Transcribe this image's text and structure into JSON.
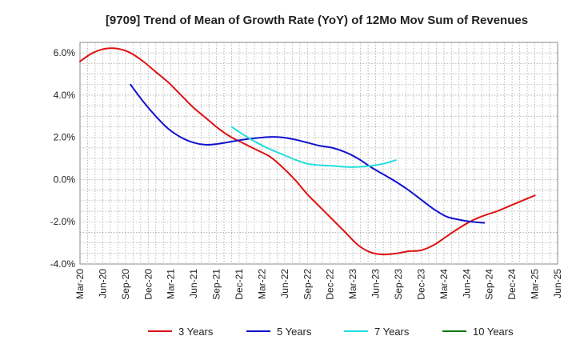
{
  "chart_data": {
    "type": "line",
    "title": "[9709]  Trend of Mean of Growth Rate (YoY) of 12Mo Mov Sum of Revenues",
    "xlabel": "",
    "ylabel": "",
    "ylim": [
      -4.0,
      6.5
    ],
    "yticks": [
      6.0,
      4.0,
      2.0,
      0.0,
      -2.0,
      -4.0
    ],
    "ytick_labels": [
      "6.0%",
      "4.0%",
      "2.0%",
      "0.0%",
      "-2.0%",
      "-4.0%"
    ],
    "x_ticks": [
      "Mar-20",
      "Jun-20",
      "Sep-20",
      "Dec-20",
      "Mar-21",
      "Jun-21",
      "Sep-21",
      "Dec-21",
      "Mar-22",
      "Jun-22",
      "Sep-22",
      "Dec-22",
      "Mar-23",
      "Jun-23",
      "Sep-23",
      "Dec-23",
      "Mar-24",
      "Jun-24",
      "Sep-24",
      "Dec-24",
      "Mar-25",
      "Jun-25"
    ],
    "grid": true,
    "legend_position": "bottom",
    "series": [
      {
        "name": "3 Years",
        "color": "#dd1111",
        "start_index": 0,
        "values": [
          5.6,
          6.0,
          6.2,
          6.2,
          6.0,
          5.6,
          5.1,
          4.6,
          4.0,
          3.4,
          2.9,
          2.4,
          2.0,
          1.7,
          1.4,
          1.1,
          0.6,
          0.0,
          -0.7,
          -1.3,
          -1.9,
          -2.5,
          -3.1,
          -3.45,
          -3.55,
          -3.5,
          -3.4,
          -3.35,
          -3.1,
          -2.7,
          -2.3,
          -1.95,
          -1.7,
          -1.5,
          -1.25,
          -1.0,
          -0.75
        ]
      },
      {
        "name": "5 Years",
        "color": "#1111cc",
        "start_index": 4,
        "values": [
          4.5,
          3.7,
          3.0,
          2.4,
          2.0,
          1.75,
          1.65,
          1.7,
          1.8,
          1.9,
          1.97,
          2.02,
          2.0,
          1.9,
          1.75,
          1.6,
          1.5,
          1.3,
          1.0,
          0.6,
          0.25,
          -0.1,
          -0.5,
          -0.95,
          -1.4,
          -1.75,
          -1.9,
          -2.0,
          -2.05
        ]
      },
      {
        "name": "7 Years",
        "color": "#22dddd",
        "start_index": 12,
        "values": [
          2.5,
          2.1,
          1.75,
          1.45,
          1.2,
          0.95,
          0.75,
          0.68,
          0.65,
          0.6,
          0.6,
          0.65,
          0.75,
          0.92
        ]
      },
      {
        "name": "10 Years",
        "color": "#117711",
        "start_index": 0,
        "values": []
      }
    ]
  }
}
